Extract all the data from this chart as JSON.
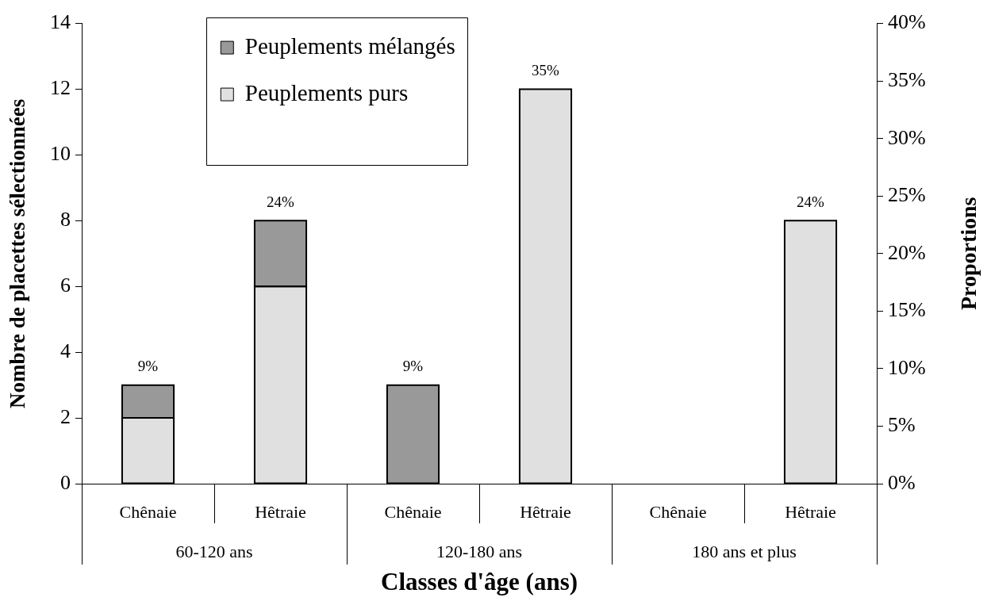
{
  "chart_data": {
    "type": "bar",
    "stacked": true,
    "xlabel": "Classes d'âge (ans)",
    "ylabel": "Nombre de placettes sélectionnées",
    "y2label": "Proportions",
    "categories": [
      "Chênaie",
      "Hêtraie",
      "Chênaie",
      "Hêtraie",
      "Chênaie",
      "Hêtraie"
    ],
    "series": [
      {
        "name": "Peuplements purs",
        "color": "#e0e0e0",
        "values": [
          2,
          6,
          0,
          12,
          0,
          8
        ]
      },
      {
        "name": "Peuplements mélangés",
        "color": "#999999",
        "values": [
          1,
          2,
          3,
          0,
          0,
          0
        ]
      }
    ],
    "ylim": [
      0,
      14
    ],
    "yticks": [
      0,
      2,
      4,
      6,
      8,
      10,
      12,
      14
    ],
    "y2lim": [
      0,
      40
    ],
    "y2ticks": [
      {
        "value": 0,
        "label": "0%"
      },
      {
        "value": 5,
        "label": "5%"
      },
      {
        "value": 10,
        "label": "10%"
      },
      {
        "value": 15,
        "label": "15%"
      },
      {
        "value": 20,
        "label": "20%"
      },
      {
        "value": 25,
        "label": "25%"
      },
      {
        "value": 30,
        "label": "30%"
      },
      {
        "value": 35,
        "label": "35%"
      },
      {
        "value": 40,
        "label": "40%"
      }
    ],
    "annotations": [
      {
        "text": "9%",
        "y": 3
      },
      {
        "text": "24%",
        "y": 8
      },
      {
        "text": "9%",
        "y": 3
      },
      {
        "text": "35%",
        "y": 12
      },
      {
        "text": "24%",
        "y": 8
      },
      "60-120 ans",
      "120-180 ans",
      "180 ans et plus"
    ],
    "legend": "top left",
    "grid": false
  }
}
